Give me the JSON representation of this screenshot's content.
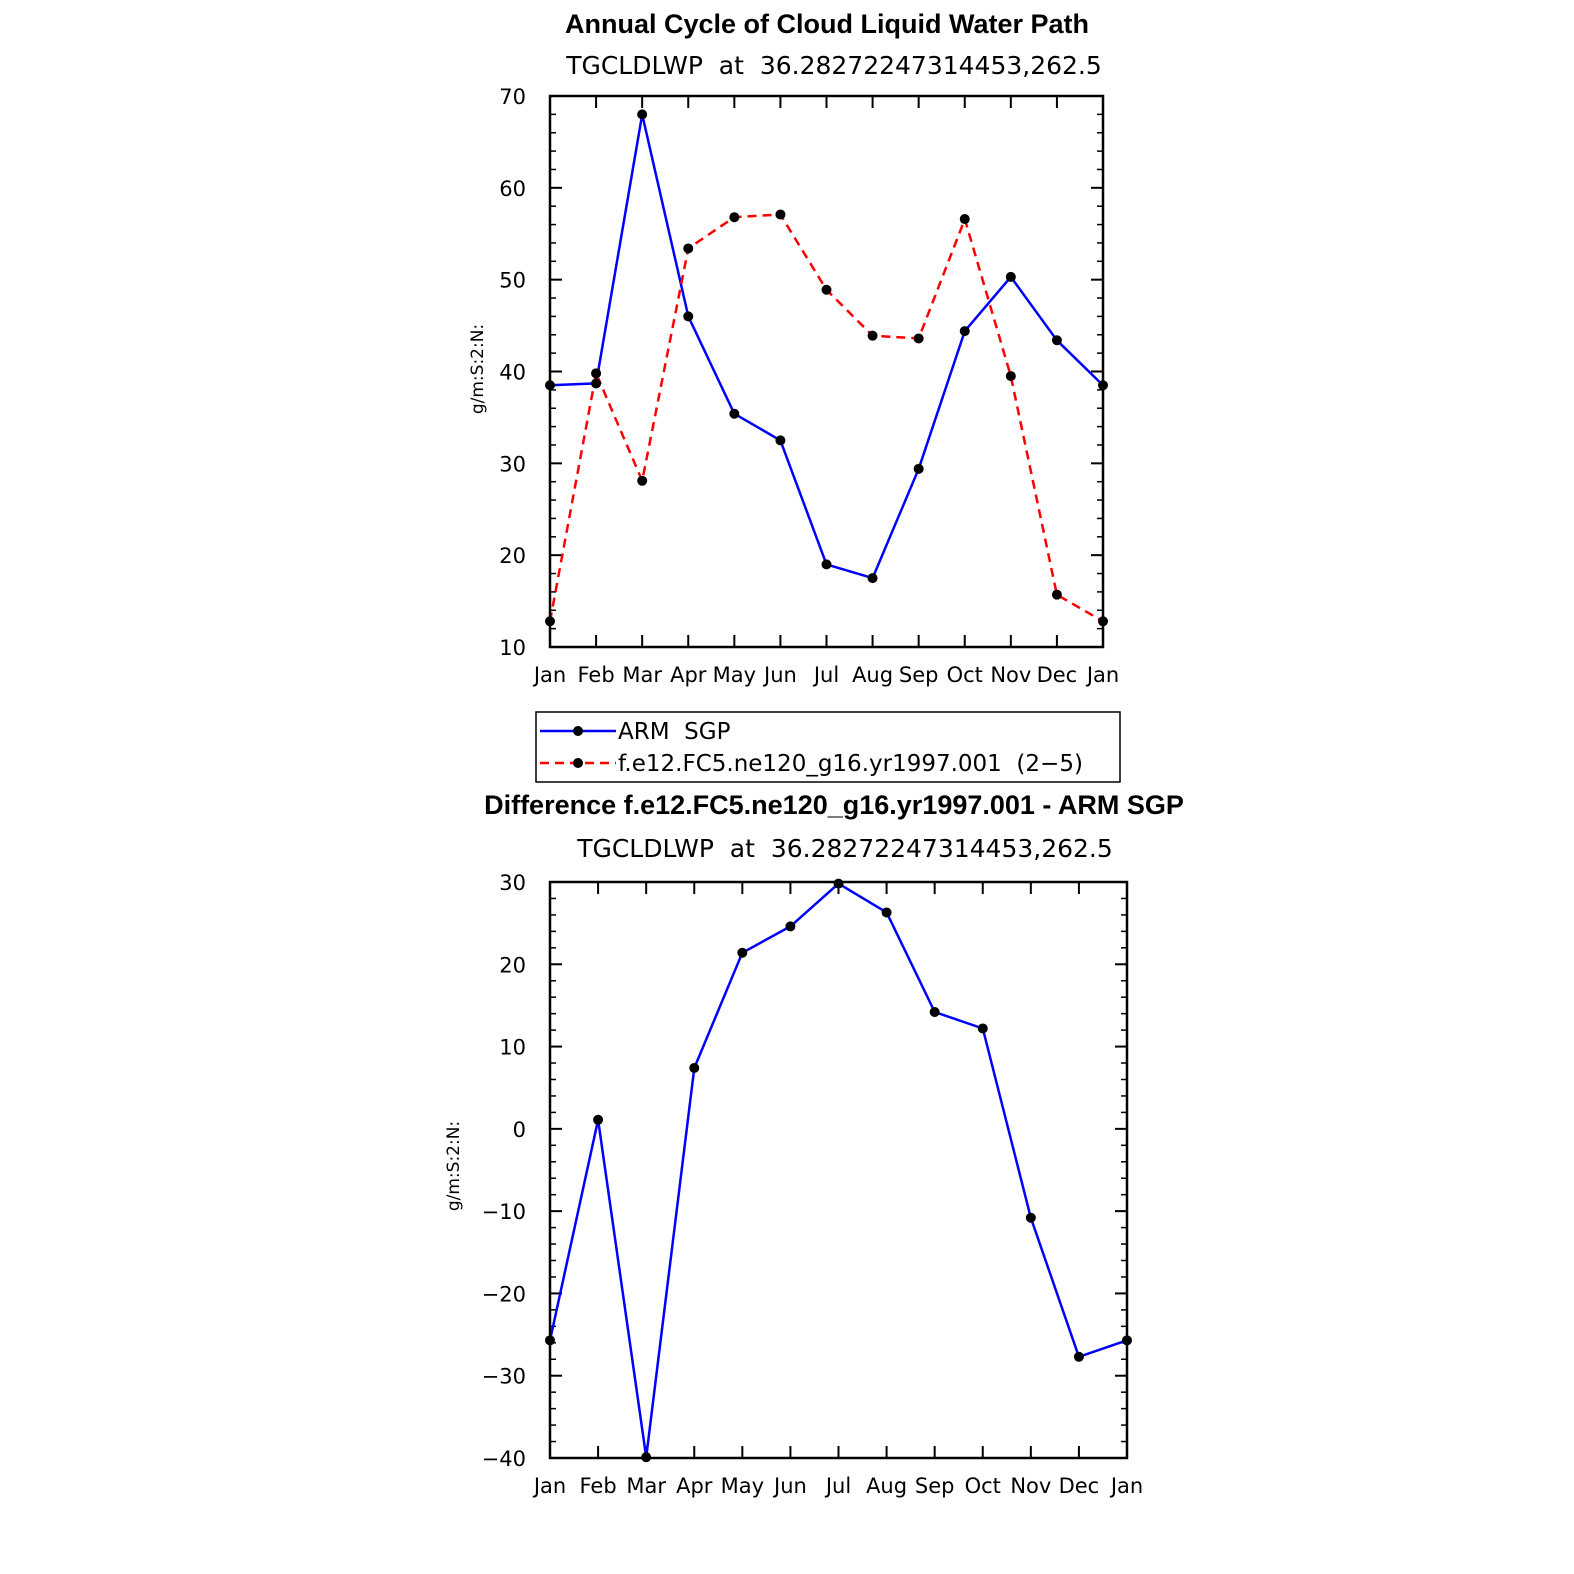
{
  "colors": {
    "arm": "#0000ff",
    "model": "#ff0000",
    "marker": "#000000"
  },
  "chart_data": [
    {
      "type": "line",
      "title": "Annual Cycle of Cloud Liquid Water Path",
      "subtitle": "TGCLDLWP  at  36.28272247314453,262.5",
      "ylabel": "g/m:S:2:N:",
      "categories": [
        "Jan",
        "Feb",
        "Mar",
        "Apr",
        "May",
        "Jun",
        "Jul",
        "Aug",
        "Sep",
        "Oct",
        "Nov",
        "Dec",
        "Jan"
      ],
      "ylim": [
        10,
        70
      ],
      "yticks": [
        10,
        20,
        30,
        40,
        50,
        60,
        70
      ],
      "yticklabels": [
        "10",
        "20",
        "30",
        "40",
        "50",
        "60",
        "70"
      ],
      "series": [
        {
          "name": "ARM  SGP",
          "style": "solid",
          "color": "#0000ff",
          "values": [
            38.5,
            38.7,
            68.0,
            46.0,
            35.4,
            32.5,
            19.0,
            17.5,
            29.4,
            44.4,
            50.3,
            43.4,
            38.5
          ]
        },
        {
          "name": "f.e12.FC5.ne120_g16.yr1997.001  (2−5)",
          "style": "dashed",
          "color": "#ff0000",
          "values": [
            12.8,
            39.8,
            28.1,
            53.4,
            56.8,
            57.1,
            48.9,
            43.9,
            43.6,
            56.6,
            39.5,
            15.7,
            12.8
          ]
        }
      ],
      "legend": "below"
    },
    {
      "type": "line",
      "title": "Difference f.e12.FC5.ne120_g16.yr1997.001 - ARM SGP",
      "subtitle": "TGCLDLWP  at  36.28272247314453,262.5",
      "ylabel": "g/m:S:2:N:",
      "categories": [
        "Jan",
        "Feb",
        "Mar",
        "Apr",
        "May",
        "Jun",
        "Jul",
        "Aug",
        "Sep",
        "Oct",
        "Nov",
        "Dec",
        "Jan"
      ],
      "ylim": [
        -40,
        30
      ],
      "yticks": [
        -40,
        -30,
        -20,
        -10,
        0,
        10,
        20,
        30
      ],
      "yticklabels": [
        "−40",
        "−30",
        "−20",
        "−10",
        "0",
        "10",
        "20",
        "30"
      ],
      "series": [
        {
          "style": "solid",
          "color": "#0000ff",
          "values": [
            -25.7,
            1.1,
            -39.9,
            7.4,
            21.4,
            24.6,
            29.8,
            26.3,
            14.2,
            12.2,
            -10.8,
            -27.7,
            -25.7
          ]
        }
      ]
    }
  ]
}
